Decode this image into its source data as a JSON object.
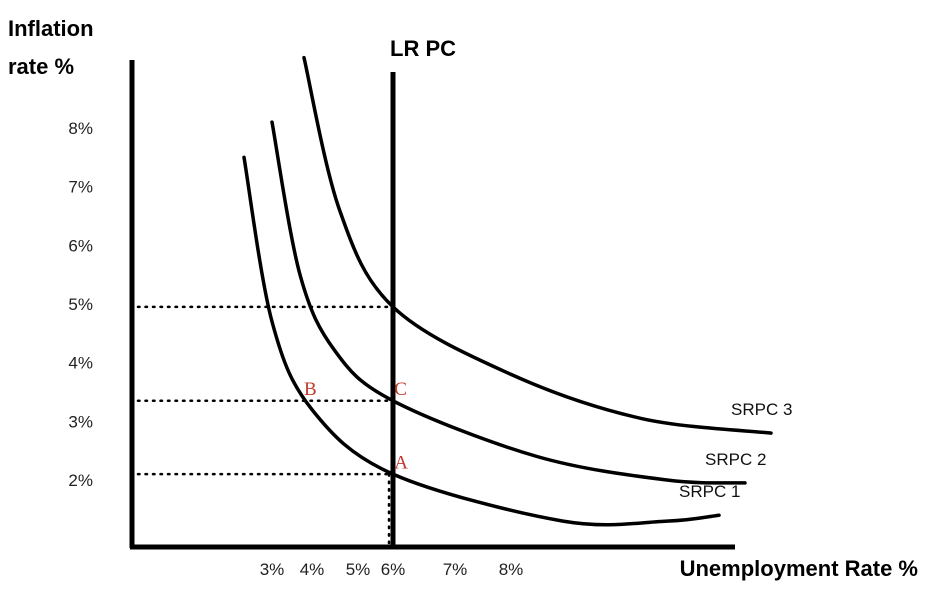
{
  "chart_data": {
    "type": "line",
    "ylabel_line1": "Inflation",
    "ylabel_line2": "rate %",
    "xlabel": "Unemployment Rate %",
    "y_ticks": [
      "2%",
      "3%",
      "4%",
      "5%",
      "6%",
      "7%",
      "8%"
    ],
    "x_ticks": [
      "3%",
      "4%",
      "5%",
      "6%",
      "7%",
      "8%"
    ],
    "lrpc": {
      "label": "LR PC",
      "x": 6
    },
    "series": [
      {
        "name": "SRPC 1",
        "points": [
          [
            2.3,
            7.5
          ],
          [
            3.0,
            4.7
          ],
          [
            4.0,
            3.2
          ],
          [
            6.0,
            2.1
          ],
          [
            9.0,
            1.3
          ],
          [
            11.0,
            1.3
          ],
          [
            12.0,
            1.4
          ]
        ]
      },
      {
        "name": "SRPC 2",
        "points": [
          [
            3.0,
            8.1
          ],
          [
            3.7,
            5.5
          ],
          [
            4.5,
            4.2
          ],
          [
            6.0,
            3.35
          ],
          [
            8.5,
            2.4
          ],
          [
            11.0,
            2.0
          ],
          [
            12.5,
            1.95
          ]
        ]
      },
      {
        "name": "SRPC 3",
        "points": [
          [
            3.8,
            9.2
          ],
          [
            4.6,
            6.6
          ],
          [
            6.0,
            4.95
          ],
          [
            8.0,
            3.8
          ],
          [
            10.5,
            3.05
          ],
          [
            13.0,
            2.8
          ]
        ]
      }
    ],
    "reference_levels": [
      {
        "y": 4.95,
        "x_end": 6
      },
      {
        "y": 3.35,
        "x_end": 6
      },
      {
        "y": 2.1,
        "x_end": 6
      }
    ],
    "annotations": [
      {
        "text": "B",
        "x": 4.0,
        "y": 3.55
      },
      {
        "text": "C",
        "x": 6.15,
        "y": 3.55
      },
      {
        "text": "A",
        "x": 6.15,
        "y": 2.3
      }
    ]
  }
}
